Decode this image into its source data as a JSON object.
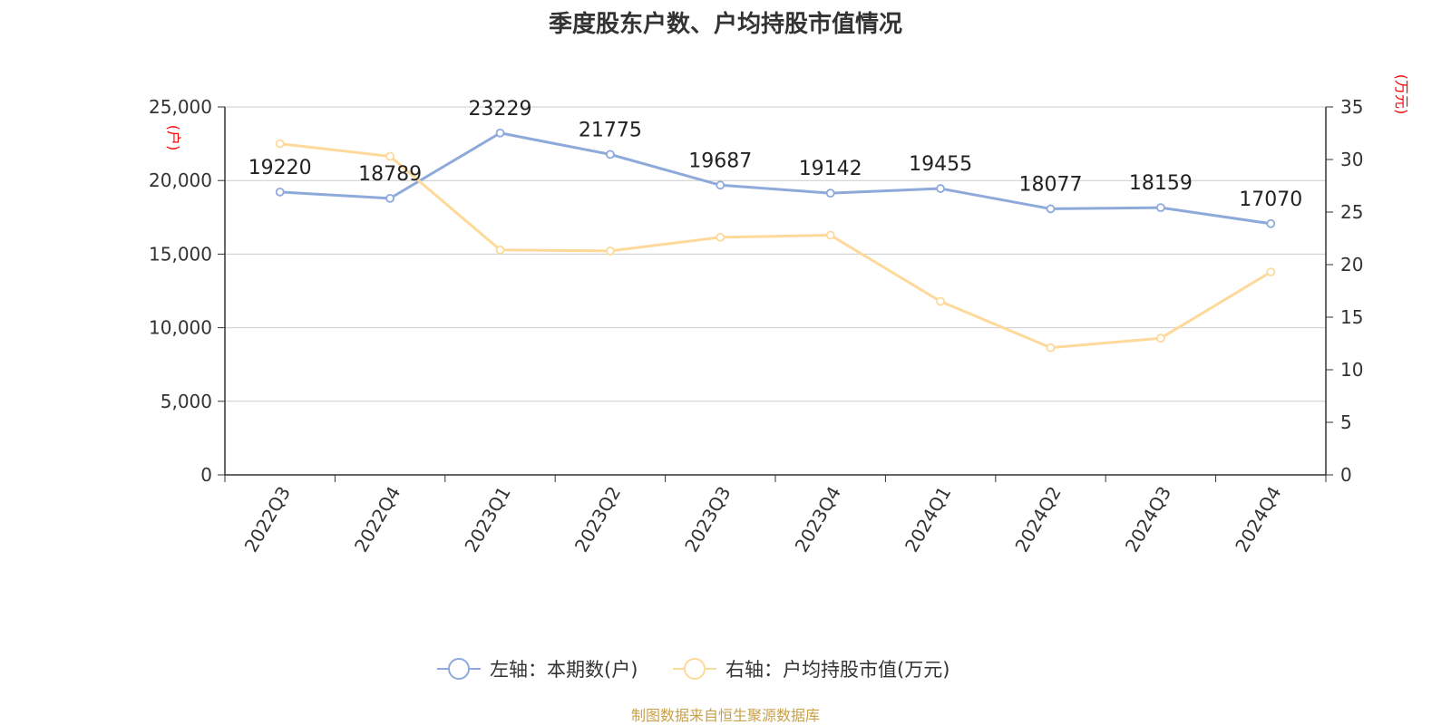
{
  "chart_data": {
    "type": "line",
    "title": "季度股东户数、户均持股市值情况",
    "categories": [
      "2022Q3",
      "2022Q4",
      "2023Q1",
      "2023Q2",
      "2023Q3",
      "2023Q4",
      "2024Q1",
      "2024Q2",
      "2024Q3",
      "2024Q4"
    ],
    "series": [
      {
        "name": "左轴：本期数(户)",
        "axis": "left",
        "color": "#8eaadb",
        "values": [
          19220,
          18789,
          23229,
          21775,
          19687,
          19142,
          19455,
          18077,
          18159,
          17070
        ],
        "data_labels": [
          "19220",
          "18789",
          "23229",
          "21775",
          "19687",
          "19142",
          "19455",
          "18077",
          "18159",
          "17070"
        ]
      },
      {
        "name": "右轴：户均持股市值(万元)",
        "axis": "right",
        "color": "#fdd99a",
        "values": [
          31.5,
          30.3,
          21.4,
          21.3,
          22.6,
          22.8,
          16.5,
          12.1,
          13.0,
          19.3
        ]
      }
    ],
    "left_axis": {
      "unit": "(户)",
      "ylim": [
        0,
        25000
      ],
      "ticks": [
        0,
        5000,
        10000,
        15000,
        20000,
        25000
      ],
      "tick_labels": [
        "0",
        "5,000",
        "10,000",
        "15,000",
        "20,000",
        "25,000"
      ]
    },
    "right_axis": {
      "unit": "(万元)",
      "ylim": [
        0,
        35
      ],
      "ticks": [
        0,
        5,
        10,
        15,
        20,
        25,
        30,
        35
      ],
      "tick_labels": [
        "0",
        "5",
        "10",
        "15",
        "20",
        "25",
        "30",
        "35"
      ]
    },
    "grid": true,
    "legend_position": "bottom-center",
    "source": "制图数据来自恒生聚源数据库"
  }
}
